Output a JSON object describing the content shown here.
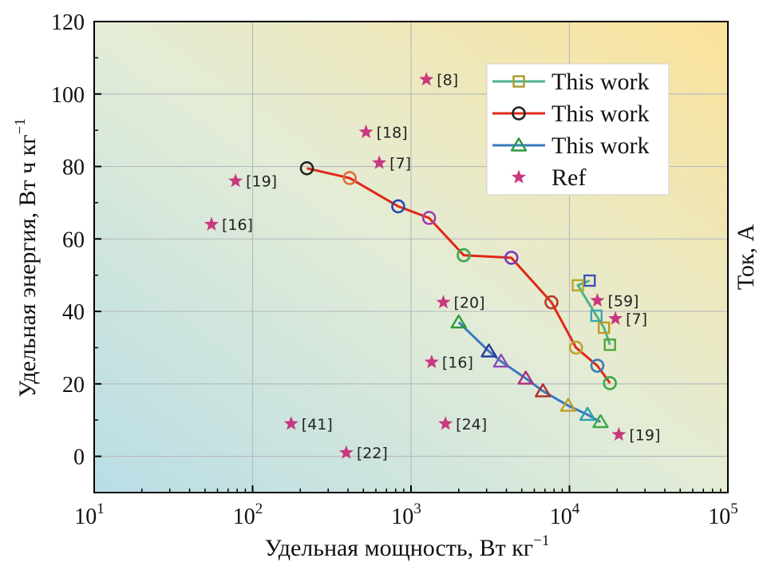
{
  "chart_data": {
    "type": "scatter",
    "xscale": "log",
    "xlim": [
      10,
      100000
    ],
    "ylim": [
      -10,
      120
    ],
    "xticks": [
      {
        "value": 10,
        "base": "10",
        "exp": "1"
      },
      {
        "value": 100,
        "base": "10",
        "exp": "2"
      },
      {
        "value": 1000,
        "base": "10",
        "exp": "3"
      },
      {
        "value": 10000,
        "base": "10",
        "exp": "4"
      },
      {
        "value": 100000,
        "base": "10",
        "exp": "5"
      }
    ],
    "yticks": [
      {
        "value": 0,
        "label": "0"
      },
      {
        "value": 20,
        "label": "20"
      },
      {
        "value": 40,
        "label": "40"
      },
      {
        "value": 60,
        "label": "60"
      },
      {
        "value": 80,
        "label": "80"
      },
      {
        "value": 100,
        "label": "100"
      },
      {
        "value": 120,
        "label": "120"
      }
    ],
    "xlabel": {
      "text": "Удельная мощность, Вт кг",
      "sup": "−1"
    },
    "ylabel": {
      "text": "Удельная энергия, Вт ч кг",
      "sup": "−1"
    },
    "y2label": "Ток, А",
    "grid": true,
    "legend": {
      "position": "top-right",
      "entries": [
        {
          "label": "This work",
          "marker": "square",
          "color": "#4db38a",
          "markerColor": "#a89a2a"
        },
        {
          "label": "This work",
          "marker": "circle",
          "color": "#e02818",
          "markerColor": "#222222"
        },
        {
          "label": "This work",
          "marker": "triangle",
          "color": "#3a7ac0",
          "markerColor": "#2a9a3a"
        },
        {
          "label": "Ref",
          "marker": "star",
          "color": "#c8387f"
        }
      ]
    },
    "series": [
      {
        "name": "This work (squares)",
        "marker": "square",
        "lineColor": "#4db38a",
        "points": [
          {
            "x": 13400,
            "y": 48.5,
            "color": "#3a52b8"
          },
          {
            "x": 11300,
            "y": 47.2,
            "color": "#b8a830"
          },
          {
            "x": 14800,
            "y": 38.8,
            "color": "#38a8b0"
          },
          {
            "x": 16500,
            "y": 35.5,
            "color": "#c09a20"
          },
          {
            "x": 18000,
            "y": 30.8,
            "color": "#4aa840"
          }
        ]
      },
      {
        "name": "This work (circles)",
        "marker": "circle",
        "lineColor": "#e02818",
        "points": [
          {
            "x": 220,
            "y": 79.5,
            "color": "#222222"
          },
          {
            "x": 410,
            "y": 76.8,
            "color": "#e06a3a"
          },
          {
            "x": 830,
            "y": 69.0,
            "color": "#2a48b0"
          },
          {
            "x": 1300,
            "y": 65.8,
            "color": "#a040b0"
          },
          {
            "x": 2150,
            "y": 55.5,
            "color": "#3aa84a"
          },
          {
            "x": 4300,
            "y": 54.8,
            "color": "#7a3ab8"
          },
          {
            "x": 7700,
            "y": 42.5,
            "color": "#b83a2a"
          },
          {
            "x": 11000,
            "y": 30.0,
            "color": "#c0a02a"
          },
          {
            "x": 15000,
            "y": 25.0,
            "color": "#3a7ab8"
          },
          {
            "x": 18000,
            "y": 20.2,
            "color": "#3aa84a"
          }
        ]
      },
      {
        "name": "This work (triangles)",
        "marker": "triangle",
        "lineColor": "#3a7ac0",
        "points": [
          {
            "x": 2000,
            "y": 37.0,
            "color": "#2a9a3a"
          },
          {
            "x": 3100,
            "y": 29.0,
            "color": "#2a3a9a"
          },
          {
            "x": 3700,
            "y": 26.2,
            "color": "#8a4ab8"
          },
          {
            "x": 5300,
            "y": 21.5,
            "color": "#b02a78"
          },
          {
            "x": 6800,
            "y": 18.0,
            "color": "#b02a2a"
          },
          {
            "x": 9800,
            "y": 14.0,
            "color": "#c0a02a"
          },
          {
            "x": 13000,
            "y": 11.5,
            "color": "#2aa0b0"
          },
          {
            "x": 15700,
            "y": 9.5,
            "color": "#3aa84a"
          }
        ]
      },
      {
        "name": "Ref",
        "marker": "star",
        "color": "#c8387f",
        "points": [
          {
            "x": 1250,
            "y": 104,
            "label": "[8]"
          },
          {
            "x": 520,
            "y": 89.5,
            "label": "[18]"
          },
          {
            "x": 630,
            "y": 81,
            "label": "[7]"
          },
          {
            "x": 78,
            "y": 76,
            "label": "[19]"
          },
          {
            "x": 55,
            "y": 64,
            "label": "[16]"
          },
          {
            "x": 1600,
            "y": 42.5,
            "label": "[20]"
          },
          {
            "x": 1350,
            "y": 26,
            "label": "[16]"
          },
          {
            "x": 175,
            "y": 9,
            "label": "[41]"
          },
          {
            "x": 1650,
            "y": 9,
            "label": "[24]"
          },
          {
            "x": 390,
            "y": 1,
            "label": "[22]"
          },
          {
            "x": 15000,
            "y": 43,
            "label": "[59]"
          },
          {
            "x": 19500,
            "y": 38,
            "label": "[7]"
          },
          {
            "x": 20500,
            "y": 6,
            "label": "[19]"
          }
        ]
      }
    ]
  }
}
